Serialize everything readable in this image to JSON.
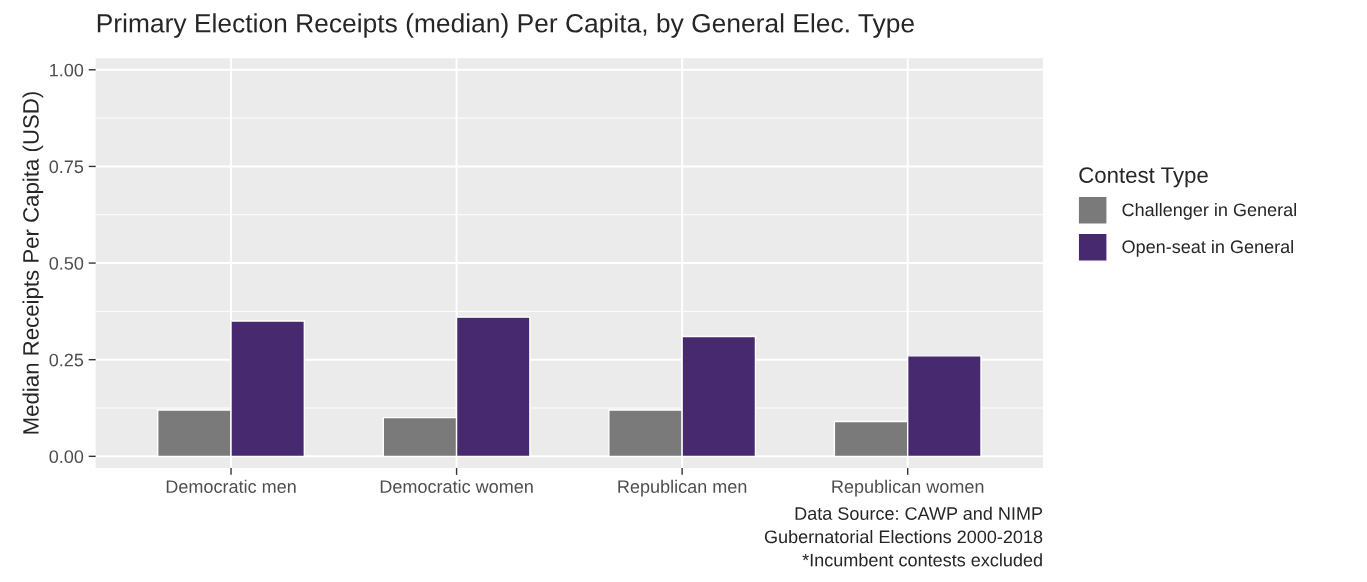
{
  "chart_data": {
    "type": "bar",
    "title": "Primary Election Receipts (median) Per Capita, by General Elec. Type",
    "ylabel": "Median Receipts Per Capita (USD)",
    "legend_title": "Contest Type",
    "categories": [
      "Democratic men",
      "Democratic women",
      "Republican men",
      "Republican women"
    ],
    "series": [
      {
        "name": "Challenger in General",
        "color": "#7a7a7a",
        "values": [
          0.12,
          0.1,
          0.12,
          0.09
        ]
      },
      {
        "name": "Open-seat in General",
        "color": "#46296e",
        "values": [
          0.35,
          0.36,
          0.31,
          0.26
        ]
      }
    ],
    "ylim": [
      -0.03,
      1.03
    ],
    "yticks": [
      {
        "value": 0,
        "label": "0.00"
      },
      {
        "value": 0.25,
        "label": "0.25"
      },
      {
        "value": 0.5,
        "label": "0.50"
      },
      {
        "value": 0.75,
        "label": "0.75"
      },
      {
        "value": 1,
        "label": "1.00"
      }
    ],
    "grid": true,
    "legend": "right",
    "annotations": [
      "Data Source: CAWP and NIMP",
      "Gubernatorial Elections 2000-2018",
      "*Incumbent contests excluded"
    ]
  }
}
